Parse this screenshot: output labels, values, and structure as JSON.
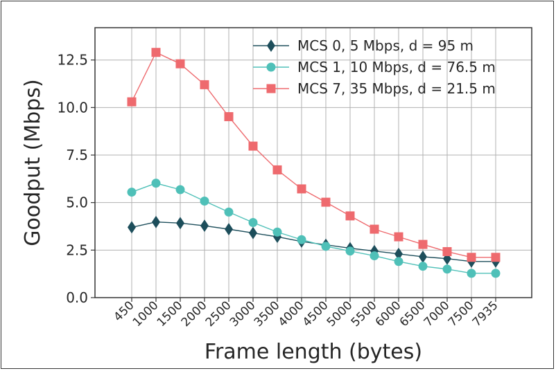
{
  "chart_data": {
    "type": "line",
    "xlabel": "Frame length (bytes)",
    "ylabel": "Goodput (Mbps)",
    "categories": [
      "450",
      "1000",
      "1500",
      "2000",
      "2500",
      "3000",
      "3500",
      "4000",
      "4500",
      "5000",
      "5500",
      "6000",
      "6500",
      "7000",
      "7500",
      "7935"
    ],
    "yticks": [
      "0.0",
      "2.5",
      "5.0",
      "7.5",
      "10.0",
      "12.5"
    ],
    "ylim": [
      0,
      14.2
    ],
    "grid": true,
    "legend_position": "top-right",
    "series": [
      {
        "name": "MCS 0, 5 Mbps, d = 95 m",
        "marker": "diamond",
        "color": "#1d4e5b",
        "values": [
          3.7,
          3.98,
          3.92,
          3.78,
          3.6,
          3.4,
          3.2,
          2.95,
          2.78,
          2.6,
          2.45,
          2.3,
          2.15,
          2.05,
          1.9,
          1.9
        ]
      },
      {
        "name": "MCS 1, 10 Mbps, d = 76.5 m",
        "marker": "circle",
        "color": "#4fc0b8",
        "values": [
          5.55,
          6.02,
          5.68,
          5.08,
          4.5,
          3.95,
          3.45,
          3.05,
          2.7,
          2.45,
          2.2,
          1.9,
          1.65,
          1.5,
          1.28,
          1.28
        ]
      },
      {
        "name": "MCS 7, 35 Mbps, d = 21.5 m",
        "marker": "square",
        "color": "#ee6a6e",
        "values": [
          10.3,
          12.9,
          12.3,
          11.2,
          9.52,
          7.97,
          6.72,
          5.72,
          5.02,
          4.3,
          3.6,
          3.2,
          2.8,
          2.42,
          2.12,
          2.12
        ]
      }
    ]
  }
}
